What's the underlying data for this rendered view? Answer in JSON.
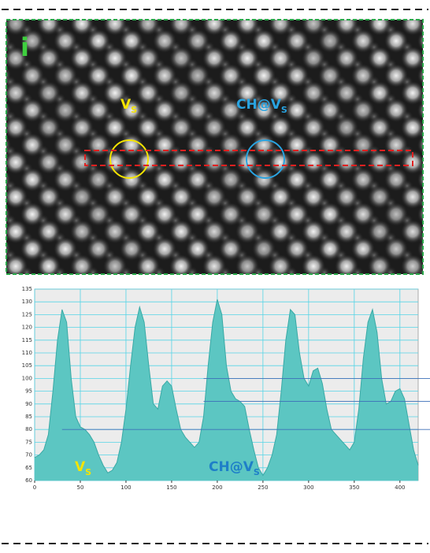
{
  "panel_label": "i",
  "image_labels": [
    {
      "text": "V",
      "subscript": "S"
    },
    {
      "text": "CH@V",
      "subscript": "S"
    }
  ],
  "chart_data": {
    "type": "area",
    "x": [
      0,
      5,
      10,
      15,
      20,
      25,
      30,
      35,
      40,
      45,
      50,
      55,
      60,
      65,
      70,
      75,
      80,
      85,
      90,
      95,
      100,
      105,
      110,
      115,
      120,
      125,
      130,
      135,
      140,
      145,
      150,
      155,
      160,
      165,
      170,
      175,
      180,
      185,
      190,
      195,
      200,
      205,
      210,
      215,
      220,
      225,
      230,
      235,
      240,
      245,
      250,
      255,
      260,
      265,
      270,
      275,
      280,
      285,
      290,
      295,
      300,
      305,
      310,
      315,
      320,
      325,
      330,
      335,
      340,
      345,
      350,
      355,
      360,
      365,
      370,
      375,
      380,
      385,
      390,
      395,
      400,
      405,
      410,
      415,
      420
    ],
    "series": [
      {
        "color": "#5cc6c2",
        "values": [
          69,
          70,
          72,
          78,
          95,
          115,
          127,
          122,
          100,
          85,
          81,
          80,
          78,
          75,
          70,
          66,
          63,
          64,
          67,
          75,
          88,
          105,
          120,
          128,
          122,
          105,
          90,
          88,
          97,
          99,
          97,
          88,
          80,
          77,
          75,
          73,
          75,
          85,
          105,
          122,
          131,
          125,
          105,
          95,
          92,
          91,
          89,
          80,
          72,
          65,
          62,
          65,
          70,
          78,
          95,
          115,
          127,
          125,
          110,
          100,
          97,
          103,
          104,
          98,
          88,
          80,
          78,
          76,
          74,
          72,
          75,
          88,
          108,
          122,
          127,
          118,
          100,
          90,
          91,
          95,
          96,
          92,
          82,
          72,
          66
        ]
      }
    ],
    "xlim": [
      0,
      420
    ],
    "ylim": [
      60,
      135
    ],
    "xticks": [
      0,
      50,
      100,
      150,
      200,
      250,
      300,
      350,
      400
    ],
    "yticks": [
      60,
      65,
      70,
      75,
      80,
      85,
      90,
      95,
      100,
      105,
      110,
      115,
      120,
      125,
      130,
      135
    ],
    "grid": true,
    "reference_lines": [
      100,
      91,
      80
    ],
    "annotations": [
      {
        "text": "V",
        "subscript": "S",
        "color": "#f5e400"
      },
      {
        "text": "CH@V",
        "subscript": "S",
        "color": "#1e7fc8"
      }
    ]
  }
}
